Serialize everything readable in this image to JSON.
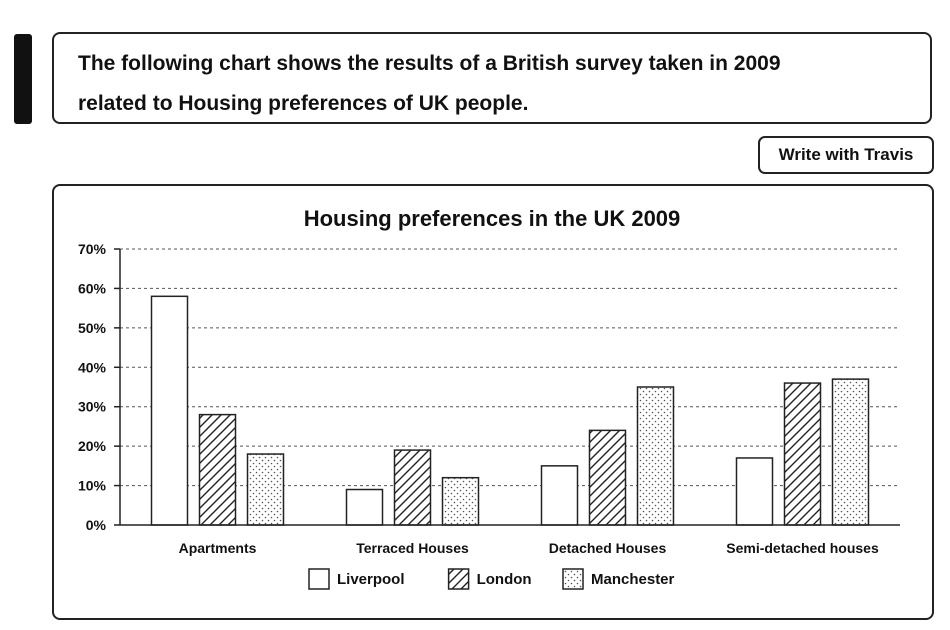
{
  "prompt": {
    "line1": "The following chart shows the results of a British survey taken in 2009",
    "line2": "related to Housing preferences of UK people."
  },
  "action_button": {
    "label": "Write with Travis"
  },
  "chart_data": {
    "type": "bar",
    "title": "Housing preferences in the UK 2009",
    "xlabel": "",
    "ylabel": "",
    "ylim": [
      0,
      70
    ],
    "yticks": [
      "0%",
      "10%",
      "20%",
      "30%",
      "40%",
      "50%",
      "60%",
      "70%"
    ],
    "grid": true,
    "legend_position": "bottom",
    "categories": [
      "Apartments",
      "Terraced Houses",
      "Detached Houses",
      "Semi-detached houses"
    ],
    "series": [
      {
        "name": "Liverpool",
        "pattern": "plain",
        "values": [
          58,
          9,
          15,
          17
        ]
      },
      {
        "name": "London",
        "pattern": "hatched",
        "values": [
          28,
          19,
          24,
          36
        ]
      },
      {
        "name": "Manchester",
        "pattern": "dotted",
        "values": [
          18,
          12,
          35,
          37
        ]
      }
    ]
  }
}
